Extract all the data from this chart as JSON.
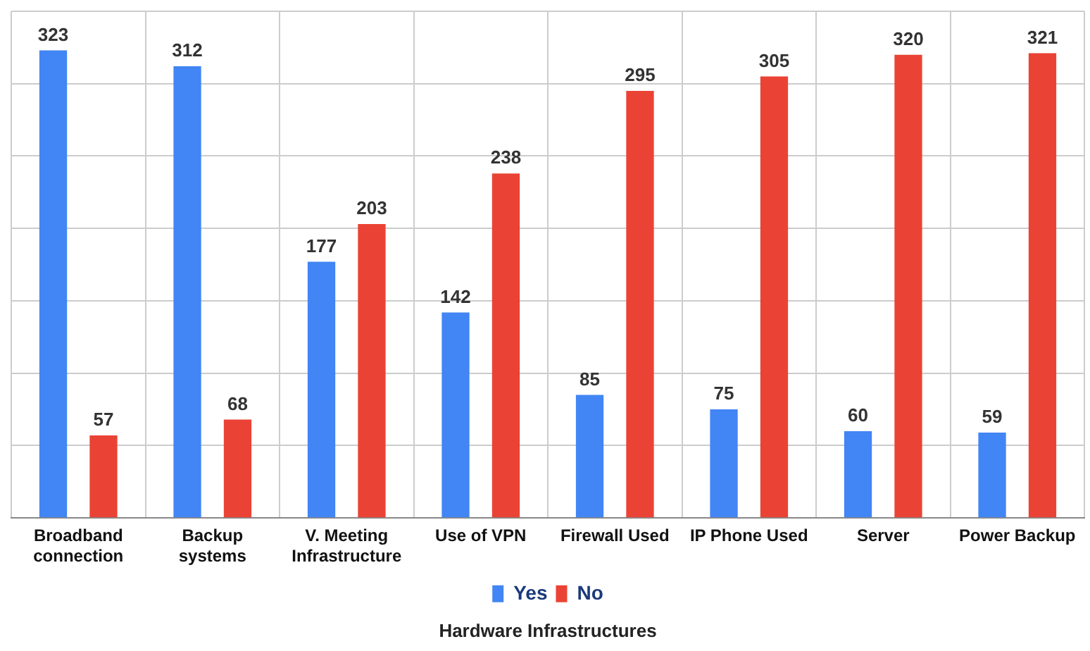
{
  "chart_data": {
    "type": "bar",
    "xlabel": "Hardware Infrastructures",
    "categories": [
      "Broadband connection",
      "Backup systems",
      "V. Meeting Infrastructure",
      "Use of VPN",
      "Firewall Used",
      "IP Phone Used",
      "Server",
      "Power Backup"
    ],
    "series": [
      {
        "name": "Yes",
        "color": "#4285f4",
        "values": [
          323,
          312,
          177,
          142,
          85,
          75,
          60,
          59
        ]
      },
      {
        "name": "No",
        "color": "#ea4335",
        "values": [
          57,
          68,
          203,
          238,
          295,
          305,
          320,
          321
        ]
      }
    ],
    "ylim": [
      0,
      350
    ],
    "yticks": [
      {
        "value": 0,
        "label": null
      },
      {
        "value": 50,
        "label": null
      },
      {
        "value": 100,
        "label": null
      },
      {
        "value": 150,
        "label": null
      },
      {
        "value": 200,
        "label": null
      },
      {
        "value": 250,
        "label": null
      },
      {
        "value": 300,
        "label": null
      },
      {
        "value": 350,
        "label": null
      }
    ],
    "tick_labels": "x",
    "grid": true,
    "legend": "bottom",
    "data_labels": true
  }
}
